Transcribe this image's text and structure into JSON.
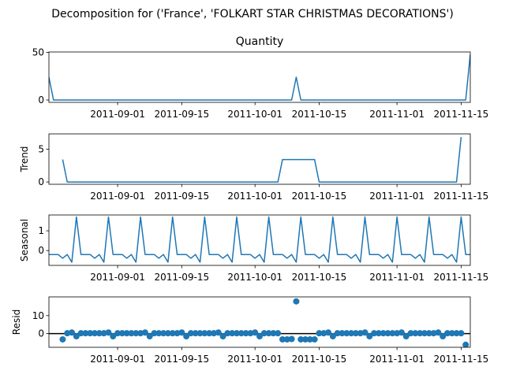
{
  "figure_title": "Decomposition for ('France', 'FOLKART STAR CHRISTMAS DECORATIONS')",
  "colors": {
    "line": "#1f77b4",
    "zero_line": "#000000",
    "axes": "#000000"
  },
  "chart_data": [
    {
      "id": "observed",
      "type": "line",
      "title": "Quantity",
      "ylabel": "",
      "x_type": "date",
      "xlim": [
        "2011-08-17",
        "2011-11-17"
      ],
      "ylim": [
        -2.5,
        50.5
      ],
      "yticks": [
        0,
        50
      ],
      "xticks": [
        "2011-09-01",
        "2011-09-15",
        "2011-10-01",
        "2011-10-15",
        "2011-11-01",
        "2011-11-15"
      ],
      "xtick_labels": [
        "2011-09-01",
        "2011-09-15",
        "2011-10-01",
        "2011-10-15",
        "2011-11-01",
        "2011-11-15"
      ],
      "x": [
        "2011-08-17",
        "2011-08-18",
        "2011-10-09",
        "2011-10-10",
        "2011-10-11",
        "2011-11-16",
        "2011-11-17"
      ],
      "y": [
        24,
        0,
        0,
        24,
        0,
        0,
        48
      ]
    },
    {
      "id": "trend",
      "type": "line",
      "title": "",
      "ylabel": "Trend",
      "x_type": "date",
      "xlim": [
        "2011-08-17",
        "2011-11-17"
      ],
      "ylim": [
        -0.35,
        7.35
      ],
      "yticks": [
        0,
        5
      ],
      "xticks": [
        "2011-09-01",
        "2011-09-15",
        "2011-10-01",
        "2011-10-15",
        "2011-11-01",
        "2011-11-15"
      ],
      "xtick_labels": [
        "2011-09-01",
        "2011-09-15",
        "2011-10-01",
        "2011-10-15",
        "2011-11-01",
        "2011-11-15"
      ],
      "x": [
        "2011-08-20",
        "2011-08-21",
        "2011-10-06",
        "2011-10-07",
        "2011-10-14",
        "2011-10-15",
        "2011-11-14",
        "2011-11-15"
      ],
      "y": [
        3.43,
        0,
        0,
        3.43,
        3.43,
        0,
        0,
        6.86
      ]
    },
    {
      "id": "seasonal",
      "type": "line",
      "title": "",
      "ylabel": "Seasonal",
      "x_type": "date",
      "xlim": [
        "2011-08-17",
        "2011-11-17"
      ],
      "ylim": [
        -0.75,
        1.8
      ],
      "yticks": [
        0,
        1
      ],
      "xticks": [
        "2011-09-01",
        "2011-09-15",
        "2011-10-01",
        "2011-10-15",
        "2011-11-01",
        "2011-11-15"
      ],
      "xtick_labels": [
        "2011-09-01",
        "2011-09-15",
        "2011-10-01",
        "2011-10-15",
        "2011-11-01",
        "2011-11-15"
      ],
      "start": "2011-08-17",
      "period_days": 7,
      "pattern": [
        -0.2,
        -0.2,
        -0.2,
        -0.39,
        -0.2,
        -0.59,
        1.7
      ]
    },
    {
      "id": "resid",
      "type": "scatter",
      "title": "",
      "ylabel": "Resid",
      "x_type": "date",
      "xlim": [
        "2011-08-17",
        "2011-11-17"
      ],
      "ylim": [
        -7.6,
        20.4
      ],
      "yticks": [
        0,
        10
      ],
      "xticks": [
        "2011-09-01",
        "2011-09-15",
        "2011-10-01",
        "2011-10-15",
        "2011-11-01",
        "2011-11-15"
      ],
      "xtick_labels": [
        "2011-09-01",
        "2011-09-15",
        "2011-10-01",
        "2011-10-15",
        "2011-11-01",
        "2011-11-15"
      ],
      "reference_line": 0,
      "points": [
        [
          "2011-08-20",
          -3.2
        ],
        [
          "2011-08-21",
          0.2
        ],
        [
          "2011-08-22",
          0.6
        ],
        [
          "2011-08-23",
          -1.5
        ],
        [
          "2011-08-24",
          0.2
        ],
        [
          "2011-08-25",
          0.2
        ],
        [
          "2011-08-26",
          0.2
        ],
        [
          "2011-08-27",
          0.2
        ],
        [
          "2011-08-28",
          0.2
        ],
        [
          "2011-08-29",
          0.2
        ],
        [
          "2011-08-30",
          0.6
        ],
        [
          "2011-08-31",
          -1.5
        ],
        [
          "2011-09-01",
          0.2
        ],
        [
          "2011-09-02",
          0.2
        ],
        [
          "2011-09-03",
          0.2
        ],
        [
          "2011-09-04",
          0.2
        ],
        [
          "2011-09-05",
          0.2
        ],
        [
          "2011-09-06",
          0.2
        ],
        [
          "2011-09-07",
          0.6
        ],
        [
          "2011-09-08",
          -1.5
        ],
        [
          "2011-09-09",
          0.2
        ],
        [
          "2011-09-10",
          0.2
        ],
        [
          "2011-09-11",
          0.2
        ],
        [
          "2011-09-12",
          0.2
        ],
        [
          "2011-09-13",
          0.2
        ],
        [
          "2011-09-14",
          0.2
        ],
        [
          "2011-09-15",
          0.6
        ],
        [
          "2011-09-16",
          -1.5
        ],
        [
          "2011-09-17",
          0.2
        ],
        [
          "2011-09-18",
          0.2
        ],
        [
          "2011-09-19",
          0.2
        ],
        [
          "2011-09-20",
          0.2
        ],
        [
          "2011-09-21",
          0.2
        ],
        [
          "2011-09-22",
          0.2
        ],
        [
          "2011-09-23",
          0.6
        ],
        [
          "2011-09-24",
          -1.5
        ],
        [
          "2011-09-25",
          0.2
        ],
        [
          "2011-09-26",
          0.2
        ],
        [
          "2011-09-27",
          0.2
        ],
        [
          "2011-09-28",
          0.2
        ],
        [
          "2011-09-29",
          0.2
        ],
        [
          "2011-09-30",
          0.2
        ],
        [
          "2011-10-01",
          0.6
        ],
        [
          "2011-10-02",
          -1.5
        ],
        [
          "2011-10-03",
          0.2
        ],
        [
          "2011-10-04",
          0.2
        ],
        [
          "2011-10-05",
          0.2
        ],
        [
          "2011-10-06",
          0.2
        ],
        [
          "2011-10-07",
          -3.2
        ],
        [
          "2011-10-08",
          -3.2
        ],
        [
          "2011-10-09",
          -3.0
        ],
        [
          "2011-10-10",
          17.9
        ],
        [
          "2011-10-11",
          -3.2
        ],
        [
          "2011-10-12",
          -3.2
        ],
        [
          "2011-10-13",
          -3.2
        ],
        [
          "2011-10-14",
          -3.2
        ],
        [
          "2011-10-15",
          0.2
        ],
        [
          "2011-10-16",
          0.2
        ],
        [
          "2011-10-17",
          0.6
        ],
        [
          "2011-10-18",
          -1.5
        ],
        [
          "2011-10-19",
          0.2
        ],
        [
          "2011-10-20",
          0.2
        ],
        [
          "2011-10-21",
          0.2
        ],
        [
          "2011-10-22",
          0.2
        ],
        [
          "2011-10-23",
          0.2
        ],
        [
          "2011-10-24",
          0.2
        ],
        [
          "2011-10-25",
          0.6
        ],
        [
          "2011-10-26",
          -1.5
        ],
        [
          "2011-10-27",
          0.2
        ],
        [
          "2011-10-28",
          0.2
        ],
        [
          "2011-10-29",
          0.2
        ],
        [
          "2011-10-30",
          0.2
        ],
        [
          "2011-10-31",
          0.2
        ],
        [
          "2011-11-01",
          0.2
        ],
        [
          "2011-11-02",
          0.6
        ],
        [
          "2011-11-03",
          -1.5
        ],
        [
          "2011-11-04",
          0.2
        ],
        [
          "2011-11-05",
          0.2
        ],
        [
          "2011-11-06",
          0.2
        ],
        [
          "2011-11-07",
          0.2
        ],
        [
          "2011-11-08",
          0.2
        ],
        [
          "2011-11-09",
          0.2
        ],
        [
          "2011-11-10",
          0.6
        ],
        [
          "2011-11-11",
          -1.5
        ],
        [
          "2011-11-12",
          0.2
        ],
        [
          "2011-11-13",
          0.2
        ],
        [
          "2011-11-14",
          0.2
        ],
        [
          "2011-11-15",
          0.2
        ],
        [
          "2011-11-16",
          -6.2
        ]
      ]
    }
  ]
}
